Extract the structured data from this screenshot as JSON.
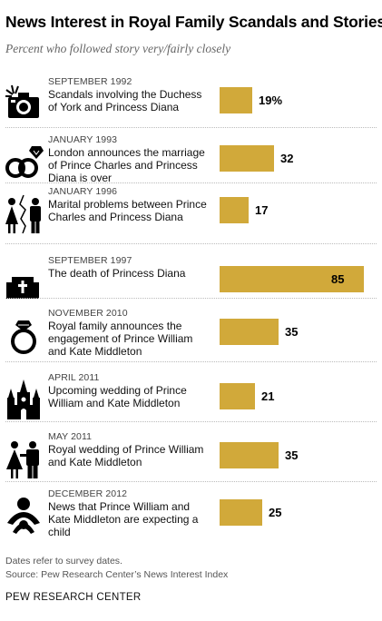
{
  "title": "News Interest in Royal Family Scandals and Stories",
  "subtitle": "Percent who followed story very/fairly closely",
  "notes": {
    "dates": "Dates refer to survey dates.",
    "source": "Source:  Pew Research Center’s News Interest Index"
  },
  "brand": "PEW RESEARCH CENTER",
  "colors": {
    "bar": "#d1a93a",
    "text": "#000000",
    "muted": "#666666"
  },
  "chart_data": {
    "type": "bar",
    "orientation": "horizontal",
    "title": "News Interest in Royal Family Scandals and Stories",
    "subtitle": "Percent who followed story very/fairly closely",
    "xlim": [
      0,
      85
    ],
    "grid": false,
    "legend": "none",
    "items": [
      {
        "date": "SEPTEMBER 1992",
        "description": "Scandals involving the Duchess of York and Princess Diana",
        "value": 19,
        "label": "19%",
        "icon": "camera-icon"
      },
      {
        "date": "JANUARY 1993",
        "description": "London announces the marriage of Prince Charles and Princess Diana is over",
        "value": 32,
        "label": "32",
        "icon": "broken-rings-icon"
      },
      {
        "date": "JANUARY 1996",
        "description": "Marital problems between Prince Charles and Princess Diana",
        "value": 17,
        "label": "17",
        "icon": "separated-couple-icon"
      },
      {
        "date": "SEPTEMBER 1997",
        "description": "The death of Princess Diana",
        "value": 85,
        "label": "85",
        "icon": "coffin-icon"
      },
      {
        "date": "NOVEMBER 2010",
        "description": "Royal family announces the engagement of Prince William and Kate Middleton",
        "value": 35,
        "label": "35",
        "icon": "engagement-ring-icon"
      },
      {
        "date": "APRIL 2011",
        "description": "Upcoming wedding of Prince William and Kate Middleton",
        "value": 21,
        "label": "21",
        "icon": "church-icon"
      },
      {
        "date": "MAY 2011",
        "description": "Royal wedding of Prince William and Kate Middleton",
        "value": 35,
        "label": "35",
        "icon": "couple-icon"
      },
      {
        "date": "DECEMBER 2012",
        "description": "News that Prince William and Kate Middleton are expecting a child",
        "value": 25,
        "label": "25",
        "icon": "baby-icon"
      }
    ]
  }
}
